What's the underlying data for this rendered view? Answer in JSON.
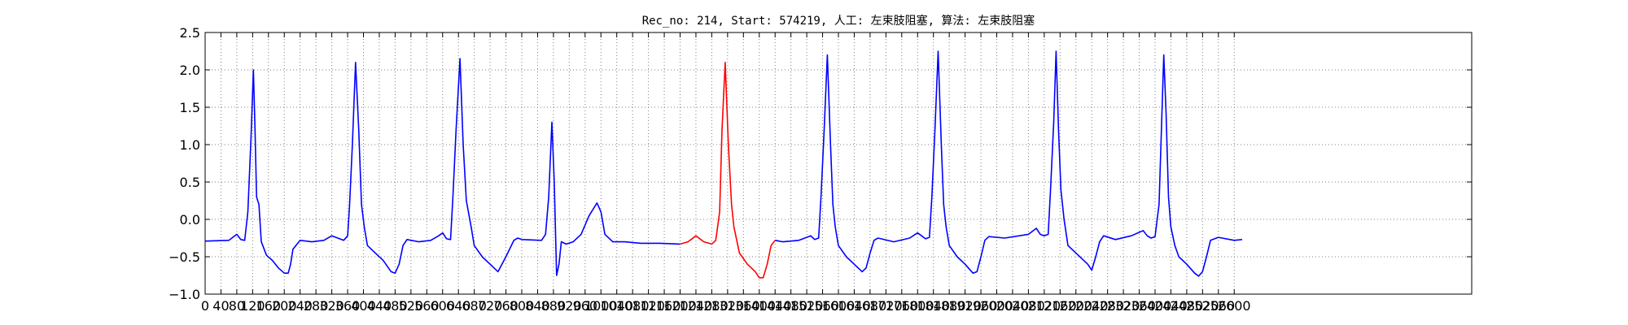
{
  "chart_data": {
    "type": "line",
    "title": "Rec_no: 214, Start: 574219, 人工: 左束肢阻塞, 算法: 左束肢阻塞",
    "xlabel": "",
    "ylabel": "",
    "xlim": [
      0,
      3200
    ],
    "ylim": [
      -1.0,
      2.5
    ],
    "grid": true,
    "y_ticks": [
      "2.5",
      "2.0",
      "1.5",
      "1.0",
      "0.5",
      "0.0",
      "−0.5",
      "−1.0"
    ],
    "y_tick_values": [
      2.5,
      2.0,
      1.5,
      1.0,
      0.5,
      0.0,
      -0.5,
      -1.0
    ],
    "x_ticks": [
      "0",
      "40",
      "80",
      "120",
      "160",
      "200",
      "240",
      "280",
      "320",
      "360",
      "400",
      "440",
      "480",
      "520",
      "560",
      "600",
      "640",
      "680",
      "720",
      "760",
      "800",
      "840",
      "880",
      "920",
      "960",
      "1000",
      "1040",
      "1080",
      "1120",
      "1160",
      "1200",
      "1240",
      "1280",
      "1320",
      "1360",
      "1400",
      "1440",
      "1480",
      "1520",
      "1560",
      "1600",
      "1640",
      "1680",
      "1720",
      "1760",
      "1800",
      "1840",
      "1880",
      "1920",
      "1960",
      "2000",
      "2040",
      "2080",
      "2120",
      "2160",
      "2200",
      "2240",
      "2280",
      "2320",
      "2360",
      "2400",
      "2440",
      "2480",
      "2520",
      "2560",
      "2600"
    ],
    "x_tick_values": [
      0,
      40,
      80,
      120,
      160,
      200,
      240,
      280,
      320,
      360,
      400,
      440,
      480,
      520,
      560,
      600,
      640,
      680,
      720,
      760,
      800,
      840,
      880,
      920,
      960,
      1000,
      1040,
      1080,
      1120,
      1160,
      1200,
      1240,
      1280,
      1320,
      1360,
      1400,
      1440,
      1480,
      1520,
      1560,
      1600,
      1640,
      1680,
      1720,
      1760,
      1800,
      1840,
      1880,
      1920,
      1960,
      2000,
      2040,
      2080,
      2120,
      2160,
      2200,
      2240,
      2280,
      2320,
      2360,
      2400,
      2440,
      2480,
      2520,
      2560,
      2600
    ],
    "series": [
      {
        "color": "#0000ff",
        "x": [
          0,
          60,
          80,
          90,
          100,
          108,
          116,
          122,
          126,
          130,
          136,
          142,
          155,
          170,
          185,
          200,
          210,
          216,
          222,
          240,
          270,
          300,
          320,
          340,
          350,
          360,
          365,
          372,
          380,
          388,
          395,
          402,
          410,
          430,
          450,
          470,
          480,
          490,
          500,
          510,
          540,
          570,
          590,
          600,
          610,
          620,
          626,
          634,
          644,
          652,
          660,
          672,
          680,
          700,
          720,
          740,
          760,
          780,
          790,
          800,
          850,
          860,
          868,
          876,
          882,
          888,
          894,
          900,
          912,
          930,
          950,
          970,
          990,
          1000,
          1010,
          1030,
          1060,
          1100,
          1150,
          1200
        ],
        "y": [
          -0.29,
          -0.28,
          -0.2,
          -0.27,
          -0.28,
          0.1,
          1.1,
          2.0,
          1.2,
          0.3,
          0.2,
          -0.3,
          -0.48,
          -0.55,
          -0.65,
          -0.72,
          -0.72,
          -0.6,
          -0.4,
          -0.28,
          -0.3,
          -0.28,
          -0.22,
          -0.26,
          -0.28,
          -0.22,
          0.2,
          1.0,
          2.1,
          1.2,
          0.2,
          -0.1,
          -0.35,
          -0.45,
          -0.55,
          -0.7,
          -0.72,
          -0.6,
          -0.35,
          -0.27,
          -0.3,
          -0.28,
          -0.22,
          -0.18,
          -0.26,
          -0.27,
          0.3,
          1.2,
          2.15,
          1.0,
          0.25,
          -0.1,
          -0.35,
          -0.5,
          -0.6,
          -0.7,
          -0.5,
          -0.28,
          -0.25,
          -0.27,
          -0.28,
          -0.2,
          0.3,
          1.3,
          0.5,
          -0.75,
          -0.6,
          -0.3,
          -0.33,
          -0.3,
          -0.2,
          0.05,
          0.22,
          0.1,
          -0.2,
          -0.3,
          -0.3,
          -0.32,
          -0.32,
          -0.33
        ]
      },
      {
        "color": "#ff0000",
        "x": [
          1200,
          1220,
          1240,
          1260,
          1280,
          1290,
          1300,
          1306,
          1314,
          1322,
          1330,
          1336,
          1350,
          1370,
          1390,
          1400,
          1410,
          1420,
          1430,
          1440
        ],
        "y": [
          -0.33,
          -0.3,
          -0.22,
          -0.3,
          -0.33,
          -0.28,
          0.1,
          1.2,
          2.1,
          1.0,
          0.2,
          -0.1,
          -0.45,
          -0.6,
          -0.7,
          -0.78,
          -0.78,
          -0.6,
          -0.35,
          -0.28
        ]
      },
      {
        "color": "#0000ff",
        "x": [
          1440,
          1460,
          1500,
          1530,
          1540,
          1550,
          1556,
          1564,
          1572,
          1580,
          1586,
          1592,
          1600,
          1620,
          1640,
          1660,
          1670,
          1680,
          1690,
          1700,
          1740,
          1780,
          1800,
          1810,
          1820,
          1830,
          1836,
          1844,
          1852,
          1860,
          1866,
          1872,
          1880,
          1900,
          1920,
          1940,
          1950,
          1960,
          1970,
          1980,
          2020,
          2080,
          2100,
          2110,
          2120,
          2130,
          2136,
          2144,
          2150,
          2156,
          2162,
          2170,
          2180,
          2200,
          2230,
          2240,
          2250,
          2260,
          2270,
          2300,
          2340,
          2370,
          2380,
          2390,
          2400,
          2410,
          2416,
          2422,
          2428,
          2434,
          2440,
          2450,
          2460,
          2480,
          2500,
          2510,
          2520,
          2530,
          2540,
          2560,
          2600,
          2620
        ],
        "y": [
          -0.28,
          -0.3,
          -0.28,
          -0.22,
          -0.27,
          -0.25,
          0.3,
          1.2,
          2.2,
          1.0,
          0.2,
          -0.1,
          -0.35,
          -0.5,
          -0.6,
          -0.7,
          -0.65,
          -0.45,
          -0.28,
          -0.25,
          -0.3,
          -0.25,
          -0.18,
          -0.22,
          -0.26,
          -0.24,
          0.3,
          1.2,
          2.25,
          1.0,
          0.2,
          -0.1,
          -0.35,
          -0.5,
          -0.6,
          -0.72,
          -0.7,
          -0.5,
          -0.28,
          -0.23,
          -0.25,
          -0.2,
          -0.12,
          -0.2,
          -0.22,
          -0.2,
          0.4,
          1.3,
          2.25,
          1.2,
          0.4,
          0.0,
          -0.35,
          -0.45,
          -0.6,
          -0.68,
          -0.5,
          -0.3,
          -0.22,
          -0.27,
          -0.22,
          -0.15,
          -0.22,
          -0.25,
          -0.23,
          0.2,
          1.2,
          2.2,
          1.4,
          0.3,
          -0.1,
          -0.35,
          -0.5,
          -0.6,
          -0.72,
          -0.76,
          -0.7,
          -0.5,
          -0.28,
          -0.24,
          -0.28,
          -0.27
        ]
      }
    ]
  }
}
